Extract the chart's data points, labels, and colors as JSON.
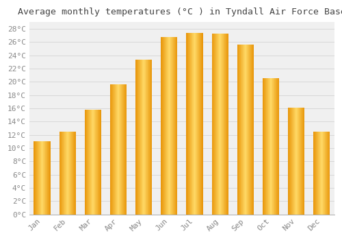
{
  "title": "Average monthly temperatures (°C ) in Tyndall Air Force Base",
  "months": [
    "Jan",
    "Feb",
    "Mar",
    "Apr",
    "May",
    "Jun",
    "Jul",
    "Aug",
    "Sep",
    "Oct",
    "Nov",
    "Dec"
  ],
  "values": [
    11.0,
    12.5,
    15.8,
    19.6,
    23.3,
    26.7,
    27.4,
    27.3,
    25.6,
    20.5,
    16.1,
    12.5
  ],
  "bar_color_center": "#FFD966",
  "bar_color_edge": "#E8960A",
  "background_color": "#FFFFFF",
  "plot_bg_color": "#F0F0F0",
  "grid_color": "#D8D8D8",
  "text_color": "#888888",
  "title_color": "#444444",
  "ylim": [
    0,
    29
  ],
  "ytick_step": 2,
  "title_fontsize": 9.5,
  "tick_fontsize": 8,
  "font_family": "monospace"
}
